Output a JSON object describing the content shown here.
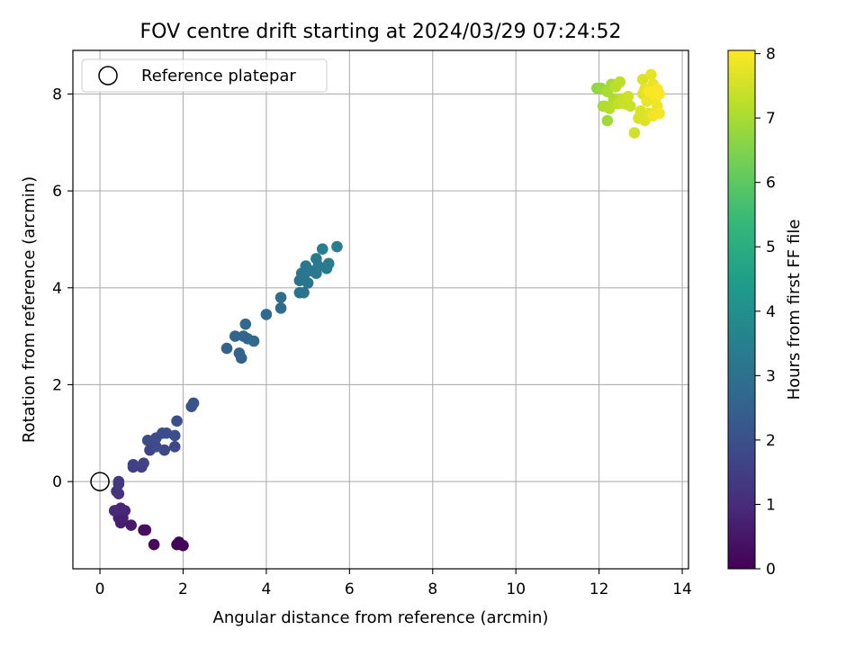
{
  "chart_data": {
    "type": "scatter",
    "title": "FOV centre drift starting at 2024/03/29 07:24:52",
    "xlabel": "Angular distance from reference (arcmin)",
    "ylabel": "Rotation from reference (arcmin)",
    "xlim": [
      -0.65,
      14.15
    ],
    "ylim": [
      -1.8,
      8.9
    ],
    "xticks": [
      0,
      2,
      4,
      6,
      8,
      10,
      12,
      14
    ],
    "yticks": [
      0,
      2,
      4,
      6,
      8
    ],
    "grid": true,
    "legend": {
      "placement": "upper-left",
      "entries": [
        "Reference platepar"
      ]
    },
    "reference_point": {
      "label": "Reference platepar",
      "x": 0,
      "y": 0
    },
    "colorbar": {
      "label": "Hours from first FF file",
      "colormap": "viridis",
      "range": [
        0,
        8.05
      ],
      "ticks": [
        0,
        1,
        2,
        3,
        4,
        5,
        6,
        7,
        8
      ]
    },
    "series": [
      {
        "points": [
          [
            1.95,
            -1.3,
            0.05
          ],
          [
            1.85,
            -1.3,
            0.08
          ],
          [
            2.0,
            -1.32,
            0.1
          ],
          [
            1.9,
            -1.25,
            0.12
          ],
          [
            1.3,
            -1.3,
            0.15
          ],
          [
            1.05,
            -1.0,
            0.3
          ],
          [
            1.1,
            -1.0,
            0.35
          ],
          [
            0.75,
            -0.9,
            0.55
          ],
          [
            0.5,
            -0.85,
            0.65
          ],
          [
            0.45,
            -0.75,
            0.7
          ],
          [
            0.55,
            -0.75,
            0.72
          ],
          [
            0.6,
            -0.6,
            0.8
          ],
          [
            0.4,
            -0.6,
            0.85
          ],
          [
            0.5,
            -0.55,
            0.88
          ],
          [
            0.35,
            -0.6,
            0.9
          ],
          [
            0.45,
            -0.25,
            1.15
          ],
          [
            0.4,
            -0.2,
            1.2
          ],
          [
            0.45,
            -0.05,
            1.3
          ],
          [
            0.45,
            0.0,
            1.35
          ],
          [
            0.8,
            0.3,
            1.5
          ],
          [
            1.0,
            0.3,
            1.55
          ],
          [
            0.8,
            0.35,
            1.6
          ],
          [
            1.05,
            0.38,
            1.62
          ],
          [
            1.2,
            0.65,
            1.7
          ],
          [
            1.55,
            0.65,
            1.75
          ],
          [
            1.8,
            0.72,
            1.78
          ],
          [
            1.35,
            0.72,
            1.82
          ],
          [
            1.15,
            0.85,
            1.85
          ],
          [
            1.35,
            0.9,
            1.88
          ],
          [
            1.5,
            1.0,
            1.9
          ],
          [
            1.6,
            1.0,
            1.92
          ],
          [
            1.8,
            0.95,
            1.95
          ],
          [
            1.85,
            1.25,
            2.0
          ],
          [
            2.2,
            1.55,
            2.05
          ],
          [
            2.25,
            1.62,
            2.1
          ],
          [
            3.05,
            2.75,
            2.5
          ],
          [
            3.4,
            2.55,
            2.55
          ],
          [
            3.35,
            2.65,
            2.58
          ],
          [
            3.25,
            3.0,
            2.6
          ],
          [
            3.45,
            3.0,
            2.62
          ],
          [
            3.55,
            2.95,
            2.65
          ],
          [
            3.7,
            2.9,
            2.68
          ],
          [
            3.5,
            3.25,
            2.7
          ],
          [
            4.0,
            3.45,
            2.75
          ],
          [
            4.35,
            3.58,
            2.8
          ],
          [
            4.35,
            3.8,
            2.85
          ],
          [
            4.8,
            3.9,
            3.0
          ],
          [
            4.9,
            3.9,
            3.05
          ],
          [
            4.8,
            4.15,
            3.1
          ],
          [
            5.0,
            4.1,
            3.12
          ],
          [
            4.9,
            4.2,
            3.15
          ],
          [
            4.85,
            4.3,
            3.18
          ],
          [
            5.05,
            4.35,
            3.2
          ],
          [
            4.95,
            4.45,
            3.22
          ],
          [
            5.2,
            4.3,
            3.25
          ],
          [
            5.25,
            4.45,
            3.28
          ],
          [
            5.45,
            4.4,
            3.3
          ],
          [
            5.5,
            4.5,
            3.32
          ],
          [
            5.2,
            4.6,
            3.35
          ],
          [
            5.35,
            4.8,
            3.4
          ],
          [
            5.7,
            4.85,
            3.45
          ],
          [
            11.95,
            8.12,
            6.7
          ],
          [
            12.05,
            8.12,
            6.8
          ],
          [
            12.1,
            7.75,
            6.85
          ],
          [
            12.2,
            7.45,
            6.9
          ],
          [
            12.3,
            8.2,
            6.95
          ],
          [
            12.2,
            8.05,
            7.0
          ],
          [
            12.35,
            7.9,
            7.05
          ],
          [
            12.15,
            7.75,
            7.1
          ],
          [
            12.25,
            7.7,
            7.15
          ],
          [
            12.4,
            8.15,
            7.2
          ],
          [
            12.5,
            8.25,
            7.25
          ],
          [
            12.45,
            7.8,
            7.3
          ],
          [
            12.55,
            7.9,
            7.35
          ],
          [
            12.6,
            7.8,
            7.38
          ],
          [
            12.75,
            7.75,
            7.4
          ],
          [
            12.7,
            7.95,
            7.45
          ],
          [
            12.85,
            7.2,
            7.5
          ],
          [
            12.95,
            7.5,
            7.55
          ],
          [
            13.05,
            8.3,
            7.6
          ],
          [
            13.0,
            7.65,
            7.62
          ],
          [
            13.1,
            7.45,
            7.65
          ],
          [
            13.05,
            8.0,
            7.68
          ],
          [
            13.15,
            7.9,
            7.7
          ],
          [
            13.2,
            7.6,
            7.72
          ],
          [
            13.1,
            8.1,
            7.75
          ],
          [
            13.25,
            8.4,
            7.78
          ],
          [
            13.3,
            8.2,
            7.8
          ],
          [
            13.15,
            7.85,
            7.82
          ],
          [
            13.35,
            7.9,
            7.85
          ],
          [
            13.4,
            7.75,
            7.88
          ],
          [
            13.3,
            7.55,
            7.9
          ],
          [
            13.45,
            7.6,
            7.92
          ],
          [
            13.4,
            8.1,
            7.95
          ],
          [
            13.35,
            7.95,
            7.98
          ],
          [
            13.2,
            8.05,
            8.0
          ],
          [
            13.45,
            8.0,
            8.02
          ]
        ]
      }
    ]
  }
}
